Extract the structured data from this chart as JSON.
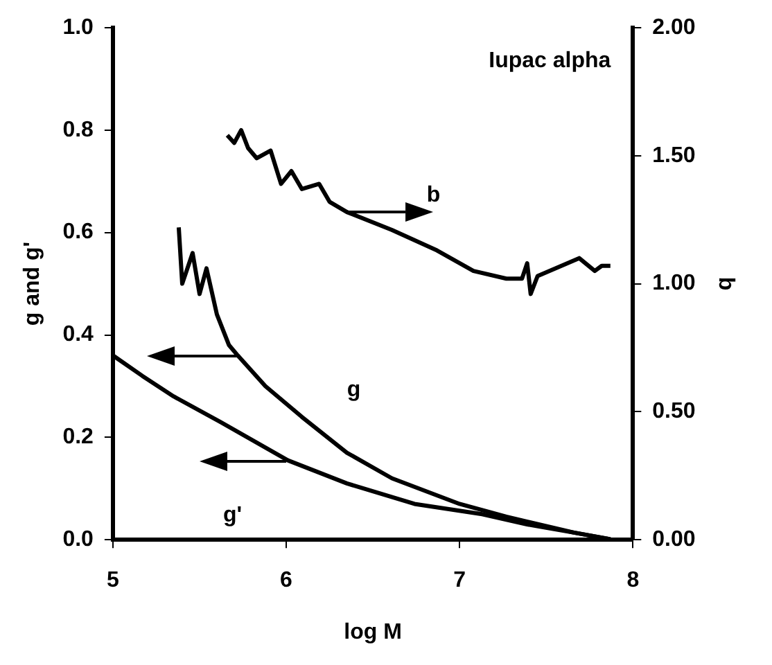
{
  "chart_data": {
    "type": "line",
    "xlabel": "log M",
    "ylabel": "g and g'",
    "y2label": "b",
    "xlim": [
      5,
      8
    ],
    "xticks": [
      5,
      6,
      7,
      8
    ],
    "ylim": [
      0,
      1
    ],
    "yticks": [
      {
        "value": 0,
        "label": "0.0"
      },
      {
        "value": 0.2,
        "label": "0.2"
      },
      {
        "value": 0.4,
        "label": "0.4"
      },
      {
        "value": 0.6,
        "label": "0.6"
      },
      {
        "value": 0.8,
        "label": "0.8"
      },
      {
        "value": 1,
        "label": "1.0"
      }
    ],
    "y2lim": [
      0,
      2
    ],
    "y2ticks": [
      {
        "value": 0,
        "label": "0.00"
      },
      {
        "value": 0.5,
        "label": "0.50"
      },
      {
        "value": 1,
        "label": "1.00"
      },
      {
        "value": 1.5,
        "label": "1.50"
      },
      {
        "value": 2,
        "label": "2.00"
      }
    ],
    "grid": false,
    "legend": false,
    "marker": "none",
    "line_style": "solid",
    "series": [
      {
        "name": "b",
        "color": "#000000",
        "axis": "y2",
        "x": [
          5.66,
          5.7,
          5.74,
          5.78,
          5.83,
          5.91,
          5.97,
          6.03,
          6.09,
          6.19,
          6.25,
          6.35,
          6.61,
          6.87,
          7.08,
          7.27,
          7.36,
          7.39,
          7.41,
          7.45,
          7.69,
          7.78,
          7.82,
          7.87
        ],
        "values": [
          1.58,
          1.55,
          1.6,
          1.53,
          1.49,
          1.52,
          1.39,
          1.44,
          1.37,
          1.39,
          1.32,
          1.28,
          1.21,
          1.13,
          1.05,
          1.02,
          1.02,
          1.08,
          0.96,
          1.03,
          1.1,
          1.05,
          1.07,
          1.07
        ]
      },
      {
        "name": "g",
        "color": "#000000",
        "x": [
          5.38,
          5.4,
          5.46,
          5.5,
          5.54,
          5.6,
          5.67,
          5.72,
          5.88,
          6.09,
          6.35,
          6.61,
          7.0,
          7.27,
          7.66,
          7.87
        ],
        "values": [
          0.61,
          0.5,
          0.56,
          0.48,
          0.53,
          0.44,
          0.38,
          0.36,
          0.3,
          0.24,
          0.17,
          0.12,
          0.07,
          0.045,
          0.014,
          0.001
        ]
      },
      {
        "name": "g'",
        "color": "#000000",
        "x": [
          5.0,
          5.17,
          5.35,
          5.62,
          6.01,
          6.35,
          6.74,
          7.13,
          7.39,
          7.66,
          7.87
        ],
        "values": [
          0.36,
          0.32,
          0.28,
          0.23,
          0.155,
          0.11,
          0.07,
          0.05,
          0.03,
          0.014,
          0.001
        ]
      }
    ],
    "annotations": [
      "Iupac alpha"
    ]
  }
}
